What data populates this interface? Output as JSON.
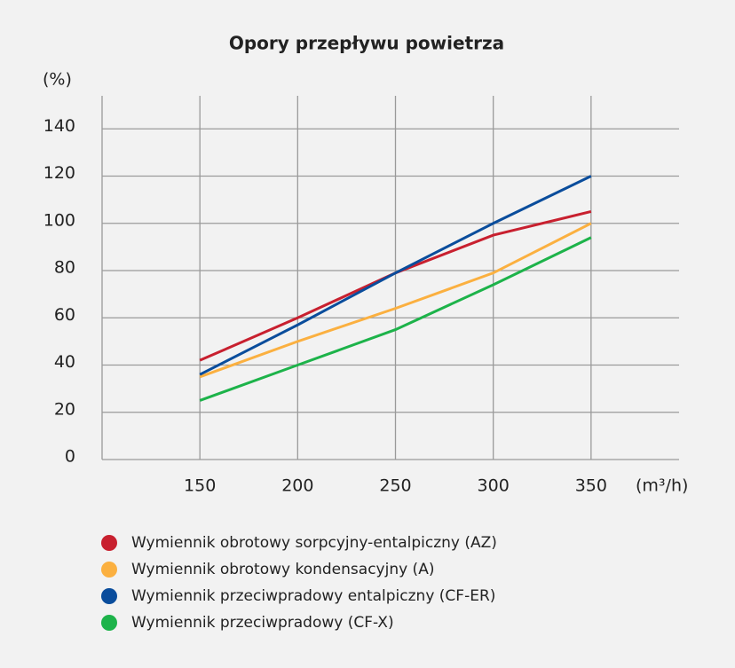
{
  "chart_data": {
    "type": "line",
    "title": "Opory przepływu powietrza",
    "y_label": "(%)",
    "x_label": "(m³/h)",
    "x": [
      150,
      200,
      250,
      300,
      350
    ],
    "series": [
      {
        "name": "Wymiennik obrotowy sorpcyjny-entalpiczny (AZ)",
        "color": "#c8202f",
        "values": [
          42,
          60,
          79,
          95,
          105
        ]
      },
      {
        "name": "Wymiennik obrotowy kondensacyjny (A)",
        "color": "#fbb040",
        "values": [
          35,
          50,
          64,
          79,
          100
        ]
      },
      {
        "name": "Wymiennik przeciwpradowy entalpiczny (CF-ER)",
        "color": "#0a4d9c",
        "values": [
          36,
          57,
          79,
          100,
          120
        ]
      },
      {
        "name": "Wymiennik przeciwpradowy (CF-X)",
        "color": "#1db34a",
        "values": [
          25,
          40,
          55,
          74,
          94
        ]
      }
    ],
    "xlim": [
      100,
      395
    ],
    "xticks": [
      150,
      200,
      250,
      300,
      350
    ],
    "ylim": [
      0,
      154
    ],
    "yticks": [
      0,
      20,
      40,
      60,
      80,
      100,
      120,
      140
    ],
    "grid": true
  }
}
